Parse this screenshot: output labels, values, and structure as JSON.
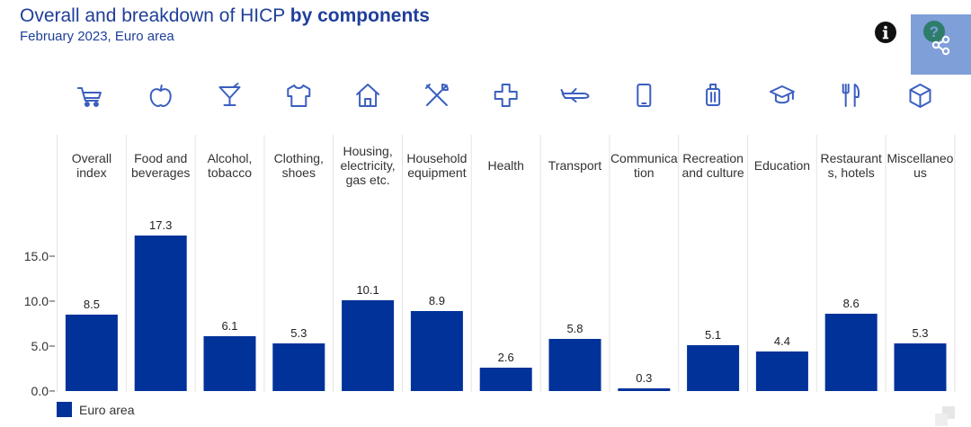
{
  "header": {
    "title_regular": "Overall and breakdown of HICP ",
    "title_bold": "by components",
    "subtitle": "February 2023, Euro area"
  },
  "colors": {
    "bar": "#003299",
    "icon": "#3b5fc0",
    "text": "#333333",
    "title": "#1f3f99",
    "share_panel": "#7f9fd9",
    "help_icon": "#2e7d6a"
  },
  "icons": [
    "shopping-cart-icon",
    "apple-icon",
    "cocktail-glass-icon",
    "shirt-icon",
    "house-icon",
    "tools-icon",
    "medical-cross-icon",
    "airplane-icon",
    "mobile-phone-icon",
    "suitcase-icon",
    "graduation-cap-icon",
    "fork-knife-icon",
    "box-icon"
  ],
  "chart_data": {
    "type": "bar",
    "categories": [
      [
        "Overall",
        "index"
      ],
      [
        "Food and",
        "beverages"
      ],
      [
        "Alcohol,",
        "tobacco"
      ],
      [
        "Clothing,",
        "shoes"
      ],
      [
        "Housing,",
        "electricity,",
        "gas etc."
      ],
      [
        "Household",
        "equipment"
      ],
      [
        "Health"
      ],
      [
        "Transport"
      ],
      [
        "Communica",
        "tion"
      ],
      [
        "Recreation",
        "and culture"
      ],
      [
        "Education"
      ],
      [
        "Restaurant",
        "s, hotels"
      ],
      [
        "Miscellaneo",
        "us"
      ]
    ],
    "series": [
      {
        "name": "Euro area",
        "values": [
          8.5,
          17.3,
          6.1,
          5.3,
          10.1,
          8.9,
          2.6,
          5.8,
          0.3,
          5.1,
          4.4,
          8.6,
          5.3
        ]
      }
    ],
    "value_labels": [
      "8.5",
      "17.3",
      "6.1",
      "5.3",
      "10.1",
      "8.9",
      "2.6",
      "5.8",
      "0.3",
      "5.1",
      "4.4",
      "8.6",
      "5.3"
    ],
    "yticks": [
      0,
      5,
      10,
      15
    ],
    "ytick_labels": [
      "0.0",
      "5.0",
      "10.0",
      "15.0"
    ],
    "ylim": [
      0,
      18
    ],
    "grid": false,
    "legend": {
      "position": "bottom-left",
      "label": "Euro area"
    }
  }
}
